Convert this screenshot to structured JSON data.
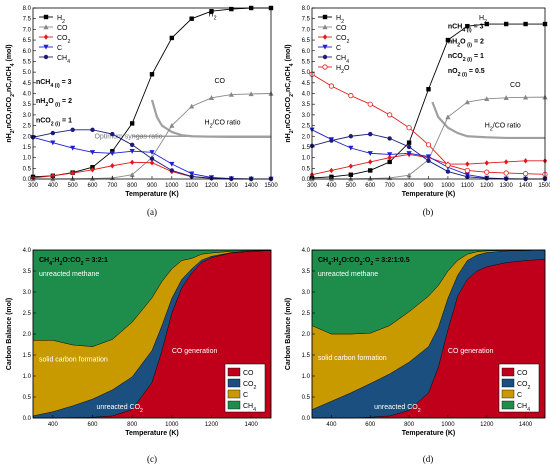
{
  "chart_data": [
    {
      "id": "a",
      "type": "line",
      "caption": "(a)",
      "xlabel": "Temperature (K)",
      "ylabel": "nH2,nCO,nCO2,nC,nCH4 (mol)",
      "xlim": [
        300,
        1500
      ],
      "ylim": [
        0,
        8
      ],
      "xticks": [
        "300",
        "400",
        "500",
        "600",
        "700",
        "800",
        "900",
        "1000",
        "1100",
        "1200",
        "1300",
        "1400",
        "1500"
      ],
      "yticks": [
        "0.0",
        "0.5",
        "1.0",
        "1.5",
        "2.0",
        "2.5",
        "3.0",
        "3.5",
        "4.0",
        "4.5",
        "5.0",
        "5.5",
        "6.0",
        "6.5",
        "7.0",
        "7.5",
        "8.0"
      ],
      "legend_position": "top-left",
      "x": [
        300,
        400,
        500,
        600,
        700,
        800,
        900,
        1000,
        1100,
        1200,
        1300,
        1400,
        1500
      ],
      "series": [
        {
          "name": "H2",
          "color": "#000000",
          "marker": "square",
          "values": [
            0.1,
            0.15,
            0.3,
            0.55,
            1.3,
            2.6,
            4.9,
            6.6,
            7.5,
            7.85,
            7.95,
            8.0,
            8.0
          ]
        },
        {
          "name": "CO",
          "color": "#888888",
          "marker": "triangle-up",
          "values": [
            0.0,
            0.0,
            0.01,
            0.02,
            0.05,
            0.2,
            1.0,
            2.5,
            3.4,
            3.8,
            3.95,
            3.98,
            4.0
          ]
        },
        {
          "name": "CO2",
          "color": "#e31a1c",
          "marker": "diamond",
          "values": [
            0.05,
            0.15,
            0.28,
            0.43,
            0.62,
            0.78,
            0.76,
            0.35,
            0.1,
            0.03,
            0.01,
            0.0,
            0.0
          ]
        },
        {
          "name": "C",
          "color": "#1f1fd6",
          "marker": "triangle-down",
          "values": [
            1.95,
            1.7,
            1.45,
            1.25,
            1.2,
            1.3,
            1.25,
            0.7,
            0.25,
            0.07,
            0.02,
            0.0,
            0.0
          ]
        },
        {
          "name": "CH4",
          "color": "#1c1c7a",
          "marker": "circle",
          "values": [
            1.95,
            2.15,
            2.3,
            2.3,
            2.1,
            1.6,
            0.95,
            0.4,
            0.12,
            0.04,
            0.01,
            0.0,
            0.0
          ]
        }
      ],
      "ratio_curve": {
        "color": "#a0a0a0",
        "x": [
          900,
          925,
          950,
          1000,
          1050,
          1100,
          1200,
          1300,
          1400,
          1500
        ],
        "values": [
          3.7,
          2.9,
          2.5,
          2.2,
          2.05,
          2.0,
          1.98,
          1.97,
          1.97,
          1.97
        ]
      },
      "ref_line": {
        "value": 2.0,
        "color": "#a0a0a0",
        "label": "Optimum syngas ratio"
      },
      "inline_labels": [
        {
          "text": "H",
          "sub": "2",
          "x": 1185,
          "y": 7.6,
          "color": "#000000"
        },
        {
          "text": "CO",
          "sub": "",
          "x": 1215,
          "y": 4.5,
          "color": "#777777"
        },
        {
          "text": "H",
          "sub": "2",
          "tail": "/CO ratio",
          "x": 1165,
          "y": 2.55,
          "color": "#777777"
        }
      ],
      "annotations": [
        {
          "text": "nCH",
          "sub": "4 (i)",
          "tail": " = 3",
          "x": 315,
          "y": 4.45
        },
        {
          "text": "nH",
          "sub": "2",
          "mid": "O",
          "sub2": " (i)",
          "tail": " = 2",
          "x": 315,
          "y": 3.55
        },
        {
          "text": "nCO",
          "sub": "2 (i)",
          "tail": " = 1",
          "x": 315,
          "y": 2.65
        }
      ]
    },
    {
      "id": "b",
      "type": "line",
      "caption": "(b)",
      "xlabel": "Temperature (K)",
      "ylabel": "nH2,nCO,nCO2,nC,nCH4 (mol)",
      "xlim": [
        300,
        1500
      ],
      "ylim": [
        0,
        8
      ],
      "xticks": [
        "300",
        "400",
        "500",
        "600",
        "700",
        "800",
        "900",
        "1000",
        "1100",
        "1200",
        "1300",
        "1400",
        "1500"
      ],
      "yticks": [
        "0.0",
        "0.5",
        "1.0",
        "1.5",
        "2.0",
        "2.5",
        "3.0",
        "3.5",
        "4.0",
        "4.5",
        "5.0",
        "5.5",
        "6.0",
        "6.5",
        "7.0",
        "7.5",
        "8.0"
      ],
      "legend_position": "top-left",
      "x": [
        300,
        400,
        500,
        600,
        700,
        800,
        900,
        1000,
        1100,
        1200,
        1300,
        1400,
        1500
      ],
      "series": [
        {
          "name": "H2",
          "color": "#000000",
          "marker": "square",
          "values": [
            0.05,
            0.1,
            0.2,
            0.4,
            0.8,
            1.7,
            4.2,
            6.5,
            7.15,
            7.25,
            7.25,
            7.25,
            7.25
          ]
        },
        {
          "name": "CO",
          "color": "#888888",
          "marker": "triangle-up",
          "values": [
            0.0,
            0.0,
            0.0,
            0.02,
            0.05,
            0.18,
            0.9,
            2.9,
            3.6,
            3.75,
            3.8,
            3.82,
            3.83
          ]
        },
        {
          "name": "CO2",
          "color": "#e31a1c",
          "marker": "diamond",
          "values": [
            0.2,
            0.4,
            0.6,
            0.8,
            1.0,
            1.15,
            1.0,
            0.7,
            0.7,
            0.75,
            0.8,
            0.85,
            0.85
          ]
        },
        {
          "name": "C",
          "color": "#1f1fd6",
          "marker": "triangle-down",
          "values": [
            2.3,
            1.85,
            1.45,
            1.2,
            1.15,
            1.2,
            1.05,
            0.55,
            0.2,
            0.05,
            0.01,
            0.0,
            0.0
          ]
        },
        {
          "name": "CH4",
          "color": "#1c1c7a",
          "marker": "circle",
          "values": [
            1.55,
            1.8,
            2.0,
            2.1,
            1.9,
            1.5,
            0.85,
            0.35,
            0.1,
            0.03,
            0.01,
            0.0,
            0.0
          ]
        },
        {
          "name": "H2O",
          "color": "#e31a1c",
          "marker": "circle-open",
          "values": [
            4.9,
            4.35,
            3.9,
            3.5,
            3.0,
            2.4,
            1.6,
            0.65,
            0.4,
            0.32,
            0.28,
            0.25,
            0.22
          ]
        }
      ],
      "ratio_curve": {
        "color": "#a0a0a0",
        "x": [
          920,
          950,
          1000,
          1050,
          1100,
          1200,
          1300,
          1400,
          1500
        ],
        "values": [
          3.6,
          2.9,
          2.4,
          2.15,
          2.0,
          1.95,
          1.92,
          1.92,
          1.92
        ]
      },
      "inline_labels": [
        {
          "text": "H",
          "sub": "2",
          "x": 1160,
          "y": 7.45,
          "color": "#000000"
        },
        {
          "text": "CO",
          "sub": "",
          "x": 1320,
          "y": 4.3,
          "color": "#777777"
        },
        {
          "text": "H",
          "sub": "2",
          "tail": "/CO ratio",
          "x": 1190,
          "y": 2.4,
          "color": "#777777"
        }
      ],
      "annotations": [
        {
          "text": "nCH",
          "sub": "4 (i)",
          "tail": " = 3",
          "x": 1000,
          "y": 7.05
        },
        {
          "text": "nH",
          "sub": "2",
          "mid": "O",
          "sub2": " (i)",
          "tail": " = 2",
          "x": 1000,
          "y": 6.35
        },
        {
          "text": "nCO",
          "sub": "2 (i)",
          "tail": " = 1",
          "x": 1000,
          "y": 5.65
        },
        {
          "text": "nO",
          "sub": "2 (i)",
          "tail": " = 0.5",
          "x": 1000,
          "y": 4.95
        }
      ]
    },
    {
      "id": "c",
      "type": "area",
      "caption": "(c)",
      "title": "CH4:H2O:CO2 = 3:2:1",
      "xlabel": "Temperature (K)",
      "ylabel": "Carbon Balance (mol)",
      "xlim": [
        300,
        1500
      ],
      "ylim": [
        0,
        4
      ],
      "xticks": [
        "400",
        "600",
        "800",
        "1000",
        "1200",
        "1400"
      ],
      "yticks": [
        "0.0",
        "0.5",
        "1.0",
        "1.5",
        "2.0",
        "2.5",
        "3.0",
        "3.5",
        "4.0"
      ],
      "legend_position": "bottom-right",
      "x": [
        300,
        400,
        500,
        600,
        700,
        800,
        900,
        950,
        1000,
        1050,
        1100,
        1150,
        1200,
        1300,
        1400,
        1500
      ],
      "series": [
        {
          "name": "CO",
          "color": "#c0001a",
          "values": [
            0.0,
            0.0,
            0.01,
            0.02,
            0.05,
            0.2,
            0.85,
            1.6,
            2.5,
            3.1,
            3.45,
            3.7,
            3.82,
            3.93,
            3.97,
            3.99
          ]
        },
        {
          "name": "CO2",
          "color": "#1a4f7f",
          "values": [
            0.05,
            0.15,
            0.28,
            0.43,
            0.62,
            0.78,
            0.76,
            0.6,
            0.35,
            0.2,
            0.1,
            0.06,
            0.03,
            0.01,
            0.0,
            0.0
          ]
        },
        {
          "name": "C",
          "color": "#c99a00",
          "values": [
            1.8,
            1.7,
            1.45,
            1.25,
            1.2,
            1.3,
            1.25,
            1.05,
            0.7,
            0.45,
            0.25,
            0.14,
            0.08,
            0.03,
            0.01,
            0.0
          ]
        },
        {
          "name": "CH4",
          "color": "#1e8c4a",
          "values": [
            2.15,
            2.15,
            2.26,
            2.3,
            2.13,
            1.72,
            1.14,
            0.75,
            0.45,
            0.25,
            0.2,
            0.1,
            0.07,
            0.03,
            0.02,
            0.01
          ]
        }
      ],
      "region_labels": [
        {
          "text": "unreacted methane",
          "x": 330,
          "y": 3.38,
          "color": "#ffffff"
        },
        {
          "text": "solid carbon formation",
          "x": 330,
          "y": 1.35,
          "color": "#ffffff"
        },
        {
          "text": "CO generation",
          "x": 1000,
          "y": 1.55,
          "color": "#ffffff"
        },
        {
          "text": "unreacted CO",
          "sub": "2",
          "x": 620,
          "y": 0.22,
          "color": "#ffffff"
        }
      ]
    },
    {
      "id": "d",
      "type": "area",
      "caption": "(d)",
      "title": "CH4:H2O:CO2:O2 = 3:2:1:0.5",
      "xlabel": "Temperature (K)",
      "ylabel": "Carbon Balance (mol)",
      "xlim": [
        300,
        1500
      ],
      "ylim": [
        0,
        4
      ],
      "xticks": [
        "400",
        "600",
        "800",
        "1000",
        "1200",
        "1400"
      ],
      "yticks": [
        "0.0",
        "0.5",
        "1.0",
        "1.5",
        "2.0",
        "2.5",
        "3.0",
        "3.5",
        "4.0"
      ],
      "legend_position": "bottom-right",
      "x": [
        300,
        400,
        500,
        600,
        700,
        800,
        900,
        950,
        1000,
        1050,
        1100,
        1150,
        1200,
        1300,
        1400,
        1500
      ],
      "series": [
        {
          "name": "CO",
          "color": "#c0001a",
          "values": [
            0.0,
            0.0,
            0.0,
            0.02,
            0.05,
            0.18,
            0.6,
            1.2,
            2.1,
            2.9,
            3.3,
            3.5,
            3.6,
            3.7,
            3.75,
            3.78
          ]
        },
        {
          "name": "CO2",
          "color": "#1a4f7f",
          "values": [
            0.2,
            0.4,
            0.6,
            0.8,
            1.0,
            1.15,
            1.1,
            0.95,
            0.75,
            0.5,
            0.45,
            0.38,
            0.34,
            0.28,
            0.24,
            0.22
          ]
        },
        {
          "name": "C",
          "color": "#c99a00",
          "values": [
            2.0,
            1.6,
            1.4,
            1.2,
            1.15,
            1.2,
            1.2,
            1.0,
            0.65,
            0.35,
            0.15,
            0.08,
            0.04,
            0.01,
            0.0,
            0.0
          ]
        },
        {
          "name": "CH4",
          "color": "#1e8c4a",
          "values": [
            1.8,
            2.0,
            2.0,
            1.98,
            1.8,
            1.47,
            1.1,
            0.85,
            0.5,
            0.25,
            0.1,
            0.04,
            0.02,
            0.01,
            0.01,
            0.0
          ]
        }
      ],
      "region_labels": [
        {
          "text": "unreacted methane",
          "x": 330,
          "y": 3.38,
          "color": "#ffffff"
        },
        {
          "text": "solid carbon formation",
          "x": 330,
          "y": 1.38,
          "color": "#ffffff"
        },
        {
          "text": "CO generation",
          "x": 1000,
          "y": 1.55,
          "color": "#ffffff"
        },
        {
          "text": "unreacted CO",
          "sub": "2",
          "x": 620,
          "y": 0.22,
          "color": "#ffffff"
        }
      ]
    }
  ]
}
